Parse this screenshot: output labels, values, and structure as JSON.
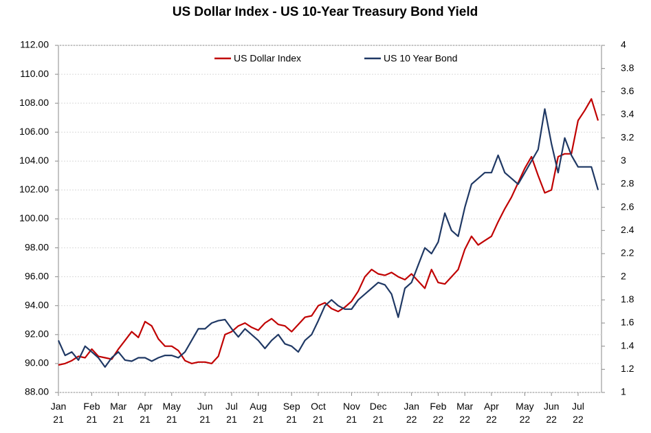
{
  "chart_data": {
    "type": "line",
    "title": "US Dollar Index - US 10-Year Treasury Bond Yield",
    "categories": [
      "Jan 21",
      null,
      null,
      null,
      null,
      "Feb 21",
      null,
      null,
      null,
      "Mar 21",
      null,
      null,
      null,
      "Apr 21",
      null,
      null,
      null,
      "May 21",
      null,
      null,
      null,
      null,
      "Jun 21",
      null,
      null,
      null,
      "Jul 21",
      null,
      null,
      null,
      "Aug 21",
      null,
      null,
      null,
      null,
      "Sep 21",
      null,
      null,
      null,
      "Oct 21",
      null,
      null,
      null,
      null,
      "Nov 21",
      null,
      null,
      null,
      "Dec 21",
      null,
      null,
      null,
      null,
      "Jan 22",
      null,
      null,
      null,
      "Feb 22",
      null,
      null,
      null,
      "Mar 22",
      null,
      null,
      null,
      "Apr 22",
      null,
      null,
      null,
      null,
      "May 22",
      null,
      null,
      null,
      "Jun 22",
      null,
      null,
      null,
      "Jul 22",
      null,
      null,
      null
    ],
    "series": [
      {
        "name": "US Dollar Index",
        "color": "#c00000",
        "values": [
          89.9,
          90.0,
          90.2,
          90.5,
          90.4,
          91.0,
          90.5,
          90.4,
          90.3,
          91.0,
          91.6,
          92.2,
          91.8,
          92.9,
          92.6,
          91.7,
          91.2,
          91.2,
          90.9,
          90.2,
          90.0,
          90.1,
          90.1,
          90.0,
          90.5,
          92.0,
          92.2,
          92.6,
          92.8,
          92.5,
          92.3,
          92.8,
          93.1,
          92.7,
          92.6,
          92.2,
          92.7,
          93.2,
          93.3,
          94.0,
          94.2,
          93.8,
          93.6,
          93.9,
          94.3,
          95.0,
          96.0,
          96.5,
          96.2,
          96.1,
          96.3,
          96.0,
          95.8,
          96.2,
          95.7,
          95.2,
          96.5,
          95.6,
          95.5,
          96.0,
          96.5,
          97.9,
          98.8,
          98.2,
          98.5,
          98.8,
          99.8,
          100.7,
          101.5,
          102.5,
          103.5,
          104.3,
          103.0,
          101.8,
          102.0,
          104.3,
          104.5,
          104.5,
          106.8,
          107.5,
          108.3,
          106.8
        ]
      },
      {
        "name": "US 10 Year Bond",
        "color": "#1f3864",
        "axis": "y2",
        "values": [
          1.45,
          1.32,
          1.35,
          1.28,
          1.4,
          1.35,
          1.3,
          1.22,
          1.3,
          1.35,
          1.28,
          1.27,
          1.3,
          1.3,
          1.27,
          1.3,
          1.32,
          1.32,
          1.3,
          1.35,
          1.45,
          1.55,
          1.55,
          1.6,
          1.62,
          1.63,
          1.55,
          1.48,
          1.55,
          1.5,
          1.45,
          1.38,
          1.45,
          1.5,
          1.42,
          1.4,
          1.35,
          1.45,
          1.5,
          1.62,
          1.75,
          1.8,
          1.75,
          1.72,
          1.72,
          1.8,
          1.85,
          1.9,
          1.95,
          1.93,
          1.85,
          1.65,
          1.9,
          1.95,
          2.1,
          2.25,
          2.2,
          2.3,
          2.55,
          2.4,
          2.35,
          2.6,
          2.8,
          2.85,
          2.9,
          2.9,
          3.05,
          2.9,
          2.85,
          2.8,
          2.9,
          3.0,
          3.1,
          3.45,
          3.15,
          2.9,
          3.2,
          3.05,
          2.95,
          2.95,
          2.95,
          2.75
        ]
      }
    ],
    "ylim": [
      88,
      112
    ],
    "yticks": [
      {
        "value": 88,
        "label": "88.00"
      },
      {
        "value": 90,
        "label": "90.00"
      },
      {
        "value": 92,
        "label": "92.00"
      },
      {
        "value": 94,
        "label": "94.00"
      },
      {
        "value": 96,
        "label": "96.00"
      },
      {
        "value": 98,
        "label": "98.00"
      },
      {
        "value": 100,
        "label": "100.00"
      },
      {
        "value": 102,
        "label": "102.00"
      },
      {
        "value": 104,
        "label": "104.00"
      },
      {
        "value": 106,
        "label": "106.00"
      },
      {
        "value": 108,
        "label": "108.00"
      },
      {
        "value": 110,
        "label": "110.00"
      },
      {
        "value": 112,
        "label": "112.00"
      }
    ],
    "y2lim": [
      1,
      4
    ],
    "y2ticks": [
      1,
      1.2,
      1.4,
      1.6,
      1.8,
      2,
      2.2,
      2.4,
      2.6,
      2.8,
      3,
      3.2,
      3.4,
      3.6,
      3.8,
      4
    ],
    "grid": true
  }
}
